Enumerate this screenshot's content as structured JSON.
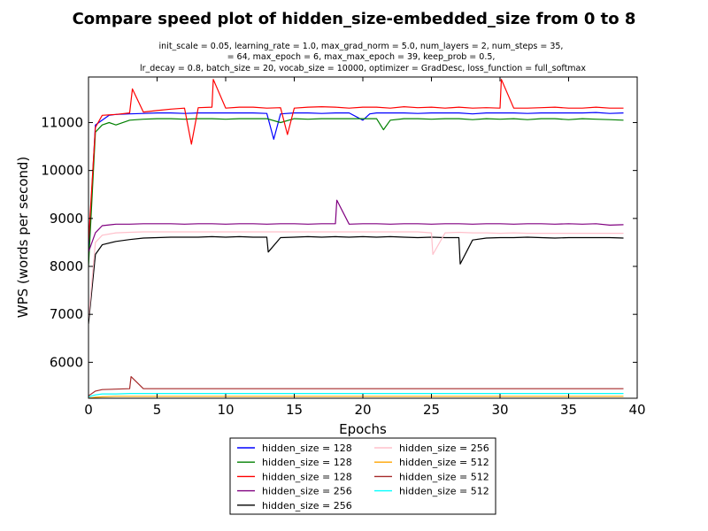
{
  "chart_data": {
    "type": "line",
    "title": "Compare speed plot of hidden_size-embedded_size from 0 to 8",
    "subtitle_lines": [
      "init_scale = 0.05, learning_rate = 1.0, max_grad_norm = 5.0, num_layers = 2, num_steps = 35,",
      "= 64, max_epoch = 6, max_max_epoch = 39, keep_prob = 0.5,",
      "lr_decay = 0.8, batch_size = 20, vocab_size = 10000, optimizer = GradDesc, loss_function = full_softmax"
    ],
    "xlabel": "Epochs",
    "ylabel": "WPS (words per second)",
    "xlim": [
      0,
      40
    ],
    "ylim": [
      5250,
      11950
    ],
    "xticks": [
      0,
      5,
      10,
      15,
      20,
      25,
      30,
      35,
      40
    ],
    "yticks": [
      6000,
      7000,
      8000,
      9000,
      10000,
      11000
    ],
    "grid": false,
    "legend_position": "bottom-center",
    "series": [
      {
        "name": "hidden_size = 128",
        "color": "#0000ff",
        "x": [
          0,
          0.5,
          1,
          1.5,
          2,
          3,
          4,
          5,
          6,
          7,
          8,
          9,
          10,
          11,
          12,
          13,
          13.5,
          14,
          15,
          16,
          17,
          18,
          19,
          20,
          20.5,
          21,
          22,
          23,
          24,
          25,
          26,
          27,
          28,
          29,
          30,
          31,
          32,
          33,
          34,
          35,
          36,
          37,
          38,
          39
        ],
        "y": [
          8300,
          10950,
          11050,
          11150,
          11170,
          11180,
          11190,
          11200,
          11200,
          11190,
          11200,
          11200,
          11200,
          11200,
          11200,
          11190,
          10650,
          11180,
          11200,
          11200,
          11190,
          11200,
          11200,
          11050,
          11180,
          11200,
          11200,
          11200,
          11190,
          11200,
          11200,
          11200,
          11180,
          11200,
          11200,
          11200,
          11190,
          11200,
          11200,
          11200,
          11200,
          11210,
          11190,
          11200
        ]
      },
      {
        "name": "hidden_size = 128",
        "color": "#008000",
        "x": [
          0,
          0.5,
          1,
          1.5,
          2,
          3,
          4,
          5,
          6,
          7,
          8,
          9,
          10,
          11,
          12,
          13,
          14,
          15,
          16,
          17,
          18,
          19,
          20,
          21,
          21.5,
          22,
          23,
          24,
          25,
          26,
          27,
          28,
          29,
          30,
          31,
          32,
          33,
          34,
          35,
          36,
          37,
          38,
          39
        ],
        "y": [
          8000,
          10800,
          10950,
          11000,
          10950,
          11050,
          11070,
          11080,
          11080,
          11070,
          11080,
          11080,
          11070,
          11080,
          11080,
          11080,
          11000,
          11080,
          11070,
          11080,
          11080,
          11080,
          11080,
          11080,
          10850,
          11050,
          11080,
          11080,
          11070,
          11080,
          11080,
          11060,
          11080,
          11070,
          11080,
          11060,
          11080,
          11080,
          11060,
          11080,
          11070,
          11060,
          11050
        ]
      },
      {
        "name": "hidden_size = 128",
        "color": "#ff0000",
        "x": [
          0,
          0.5,
          1,
          2,
          3,
          3.2,
          4,
          5,
          6,
          7,
          7.5,
          8,
          9,
          9.1,
          10,
          11,
          12,
          13,
          14,
          14.5,
          15,
          16,
          17,
          18,
          19,
          20,
          21,
          22,
          23,
          24,
          25,
          26,
          27,
          28,
          29,
          30,
          30.1,
          31,
          32,
          33,
          34,
          35,
          36,
          37,
          38,
          39
        ],
        "y": [
          8500,
          10900,
          11150,
          11170,
          11200,
          11700,
          11220,
          11250,
          11280,
          11300,
          10550,
          11310,
          11320,
          11900,
          11300,
          11320,
          11320,
          11300,
          11310,
          10750,
          11300,
          11320,
          11330,
          11320,
          11300,
          11320,
          11320,
          11300,
          11330,
          11310,
          11320,
          11300,
          11320,
          11300,
          11310,
          11300,
          11900,
          11300,
          11300,
          11310,
          11320,
          11300,
          11300,
          11320,
          11300,
          11300
        ]
      },
      {
        "name": "hidden_size = 256",
        "color": "#800080",
        "x": [
          0,
          0.5,
          1,
          2,
          3,
          4,
          5,
          6,
          7,
          8,
          9,
          10,
          11,
          12,
          13,
          14,
          15,
          16,
          17,
          18,
          18.1,
          19,
          20,
          21,
          22,
          23,
          24,
          25,
          26,
          27,
          28,
          29,
          30,
          31,
          32,
          33,
          34,
          35,
          36,
          37,
          38,
          39
        ],
        "y": [
          8300,
          8700,
          8850,
          8880,
          8880,
          8890,
          8890,
          8890,
          8880,
          8890,
          8890,
          8880,
          8890,
          8890,
          8880,
          8890,
          8890,
          8880,
          8890,
          8890,
          9380,
          8880,
          8890,
          8890,
          8880,
          8890,
          8890,
          8880,
          8890,
          8890,
          8880,
          8890,
          8890,
          8880,
          8890,
          8890,
          8880,
          8890,
          8880,
          8890,
          8860,
          8870
        ]
      },
      {
        "name": "hidden_size = 256",
        "color": "#000000",
        "x": [
          0,
          0.5,
          1,
          2,
          3,
          4,
          5,
          6,
          7,
          8,
          9,
          10,
          11,
          12,
          13,
          13.1,
          14,
          15,
          16,
          17,
          18,
          19,
          20,
          21,
          22,
          23,
          24,
          25,
          26,
          27,
          27.1,
          28,
          29,
          30,
          31,
          32,
          33,
          34,
          35,
          36,
          37,
          38,
          39
        ],
        "y": [
          6800,
          8250,
          8450,
          8520,
          8560,
          8590,
          8600,
          8610,
          8610,
          8610,
          8620,
          8610,
          8620,
          8610,
          8610,
          8300,
          8600,
          8610,
          8620,
          8610,
          8620,
          8610,
          8620,
          8610,
          8620,
          8610,
          8600,
          8610,
          8600,
          8600,
          8050,
          8550,
          8590,
          8600,
          8600,
          8610,
          8600,
          8590,
          8600,
          8600,
          8600,
          8600,
          8590
        ]
      },
      {
        "name": "hidden_size = 256",
        "color": "#ffc0cb",
        "x": [
          0,
          0.5,
          1,
          2,
          3,
          4,
          5,
          6,
          7,
          8,
          9,
          10,
          11,
          12,
          13,
          14,
          15,
          16,
          17,
          18,
          19,
          20,
          21,
          22,
          23,
          24,
          25,
          25.1,
          26,
          27,
          28,
          29,
          30,
          31,
          32,
          33,
          34,
          35,
          36,
          37,
          38,
          39
        ],
        "y": [
          6900,
          8500,
          8650,
          8700,
          8710,
          8720,
          8720,
          8720,
          8720,
          8720,
          8720,
          8720,
          8720,
          8720,
          8720,
          8720,
          8720,
          8720,
          8720,
          8720,
          8720,
          8720,
          8720,
          8720,
          8720,
          8720,
          8700,
          8250,
          8700,
          8710,
          8700,
          8700,
          8690,
          8700,
          8690,
          8690,
          8690,
          8690,
          8690,
          8690,
          8690,
          8690
        ]
      },
      {
        "name": "hidden_size = 512",
        "color": "#ffa500",
        "x": [
          0,
          0.5,
          1,
          2,
          3,
          4,
          5,
          6,
          7,
          8,
          9,
          10,
          11,
          12,
          13,
          14,
          15,
          16,
          17,
          18,
          19,
          20,
          21,
          22,
          23,
          24,
          25,
          26,
          27,
          28,
          29,
          30,
          31,
          32,
          33,
          34,
          35,
          36,
          37,
          38,
          39
        ],
        "y": [
          5250,
          5270,
          5280,
          5290,
          5290,
          5290,
          5290,
          5290,
          5290,
          5290,
          5290,
          5290,
          5290,
          5290,
          5290,
          5290,
          5290,
          5290,
          5290,
          5290,
          5290,
          5290,
          5290,
          5290,
          5290,
          5290,
          5290,
          5290,
          5290,
          5290,
          5290,
          5290,
          5290,
          5290,
          5290,
          5290,
          5290,
          5290,
          5290,
          5290,
          5290
        ]
      },
      {
        "name": "hidden_size = 512",
        "color": "#a52a2a",
        "x": [
          0,
          0.5,
          1,
          2,
          3,
          3.1,
          4,
          5,
          6,
          7,
          8,
          9,
          10,
          11,
          12,
          13,
          14,
          15,
          16,
          17,
          18,
          19,
          20,
          21,
          22,
          23,
          24,
          25,
          26,
          27,
          28,
          29,
          30,
          31,
          32,
          33,
          34,
          35,
          36,
          37,
          38,
          39
        ],
        "y": [
          5300,
          5400,
          5430,
          5440,
          5450,
          5700,
          5450,
          5450,
          5450,
          5450,
          5450,
          5450,
          5450,
          5450,
          5450,
          5450,
          5450,
          5450,
          5450,
          5450,
          5450,
          5450,
          5450,
          5450,
          5450,
          5450,
          5450,
          5450,
          5450,
          5450,
          5450,
          5450,
          5450,
          5450,
          5450,
          5450,
          5450,
          5450,
          5450,
          5450,
          5450,
          5450
        ]
      },
      {
        "name": "hidden_size = 512",
        "color": "#00ffff",
        "x": [
          0,
          0.5,
          1,
          2,
          3,
          4,
          5,
          6,
          7,
          8,
          9,
          10,
          11,
          12,
          13,
          14,
          15,
          16,
          17,
          18,
          19,
          20,
          21,
          22,
          23,
          24,
          25,
          26,
          27,
          28,
          29,
          30,
          31,
          32,
          33,
          34,
          35,
          36,
          37,
          38,
          39
        ],
        "y": [
          5280,
          5320,
          5340,
          5340,
          5350,
          5350,
          5350,
          5350,
          5350,
          5350,
          5350,
          5350,
          5350,
          5350,
          5350,
          5350,
          5350,
          5350,
          5350,
          5350,
          5350,
          5350,
          5350,
          5350,
          5350,
          5350,
          5350,
          5350,
          5350,
          5350,
          5350,
          5350,
          5350,
          5350,
          5350,
          5350,
          5350,
          5350,
          5350,
          5350,
          5350
        ]
      }
    ]
  }
}
